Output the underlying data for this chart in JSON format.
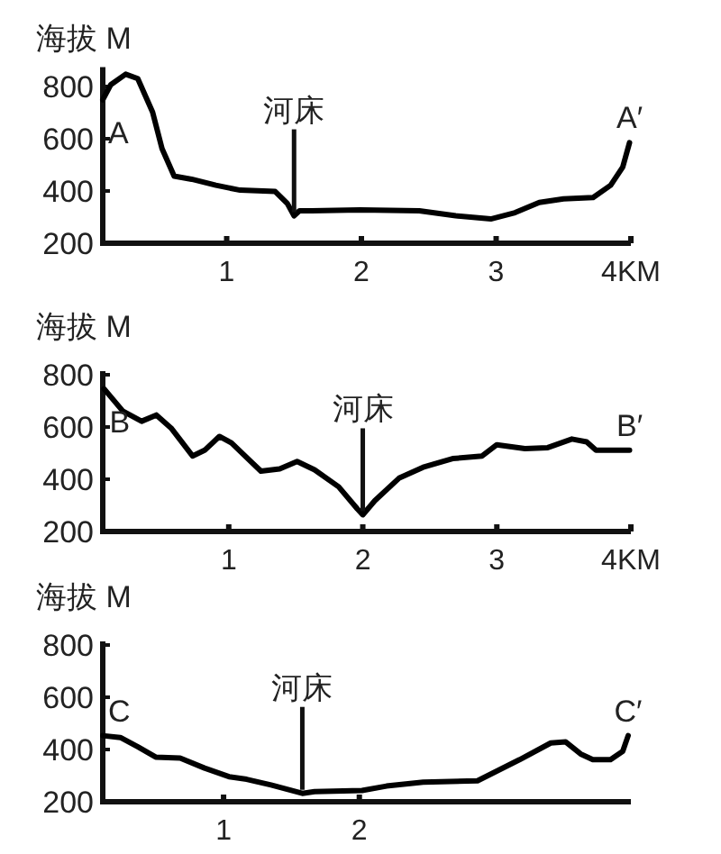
{
  "chart_data": [
    {
      "type": "line",
      "ylabel": "海拔 M",
      "xlim": [
        0.08,
        4
      ],
      "ylim": [
        200,
        860
      ],
      "xticks": [
        1,
        2,
        3,
        {
          "value": 4,
          "label": "4KM"
        }
      ],
      "yticks": [
        200,
        400,
        600,
        800
      ],
      "grid": false,
      "marker": "none",
      "line_style": "solid",
      "x": [
        0.08,
        0.14,
        0.25,
        0.34,
        0.45,
        0.52,
        0.61,
        0.74,
        0.92,
        1.1,
        1.36,
        1.45,
        1.5,
        1.54,
        1.63,
        1.99,
        2.43,
        2.7,
        2.96,
        3.14,
        3.32,
        3.5,
        3.72,
        3.85,
        3.94,
        3.99
      ],
      "series": [
        {
          "color": "#000000",
          "values": [
            749,
            807,
            847,
            830,
            702,
            562,
            457,
            445,
            422,
            403,
            398,
            352,
            305,
            324,
            324,
            328,
            324,
            305,
            293,
            317,
            356,
            370,
            375,
            422,
            492,
            585
          ]
        }
      ],
      "annotations": [
        {
          "text": "A",
          "x": 0.08,
          "y": 749
        },
        {
          "text": "河床",
          "x": 1.5,
          "y": 305
        },
        {
          "text": "A′",
          "x": 3.99,
          "y": 585
        }
      ]
    },
    {
      "type": "line",
      "ylabel": "海拔 M",
      "xlim": [
        0.06,
        4
      ],
      "ylim": [
        200,
        800
      ],
      "xticks": [
        1,
        2,
        3,
        {
          "value": 4,
          "label": "4KM"
        }
      ],
      "yticks": [
        200,
        400,
        600,
        800
      ],
      "grid": false,
      "marker": "none",
      "line_style": "solid",
      "x": [
        0.07,
        0.21,
        0.35,
        0.46,
        0.57,
        0.73,
        0.82,
        0.93,
        1.02,
        1.24,
        1.38,
        1.51,
        1.64,
        1.82,
        1.96,
        2.0,
        2.09,
        2.27,
        2.45,
        2.67,
        2.89,
        3.0,
        3.21,
        3.38,
        3.56,
        3.67,
        3.74,
        3.99
      ],
      "series": [
        {
          "color": "#000000",
          "values": [
            746,
            661,
            622,
            646,
            596,
            489,
            511,
            564,
            539,
            431,
            440,
            468,
            436,
            371,
            286,
            264,
            318,
            404,
            446,
            479,
            489,
            532,
            517,
            521,
            554,
            543,
            511,
            511
          ]
        }
      ],
      "annotations": [
        {
          "text": "B",
          "x": 0.07,
          "y": 746
        },
        {
          "text": "河床",
          "x": 2.0,
          "y": 264
        },
        {
          "text": "B′",
          "x": 3.99,
          "y": 511
        }
      ]
    },
    {
      "type": "line",
      "ylabel": "海拔 M",
      "xlim": [
        0.11,
        4
      ],
      "ylim": [
        200,
        800
      ],
      "xticks": [
        1,
        2
      ],
      "yticks": [
        200,
        400,
        600,
        800
      ],
      "grid": false,
      "marker": "none",
      "line_style": "solid",
      "x": [
        0.11,
        0.24,
        0.37,
        0.5,
        0.68,
        0.86,
        1.04,
        1.17,
        1.35,
        1.58,
        1.67,
        2.02,
        2.2,
        2.47,
        2.87,
        3.18,
        3.41,
        3.52,
        3.63,
        3.72,
        3.85,
        3.94,
        3.98
      ],
      "series": [
        {
          "color": "#000000",
          "values": [
            453,
            446,
            410,
            371,
            367,
            329,
            296,
            286,
            264,
            232,
            239,
            243,
            260,
            275,
            280,
            361,
            425,
            429,
            383,
            361,
            361,
            393,
            453
          ]
        }
      ],
      "annotations": [
        {
          "text": "C",
          "x": 0.11,
          "y": 453
        },
        {
          "text": "河床",
          "x": 1.58,
          "y": 232
        },
        {
          "text": "C′",
          "x": 3.98,
          "y": 453
        }
      ]
    }
  ]
}
